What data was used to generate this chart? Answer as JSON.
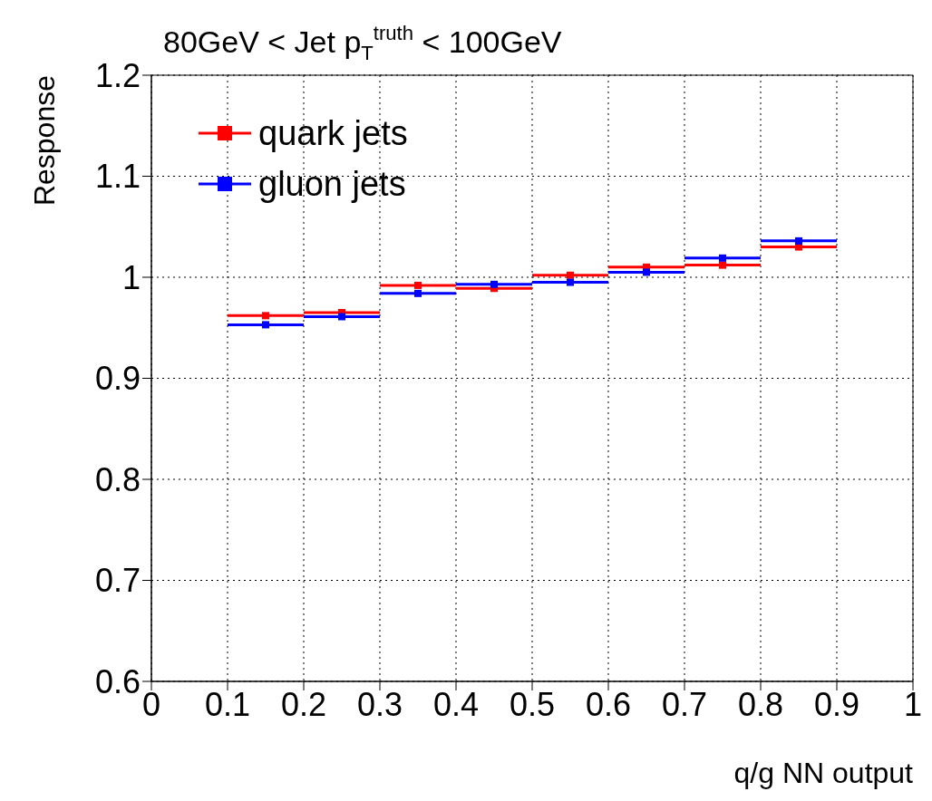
{
  "chart_data": {
    "type": "scatter",
    "title": "80GeV < Jet p$_{T}$$^{truth}$ < 100GeV",
    "xlabel": "q/g NN output",
    "ylabel": "Response",
    "x": [
      0.15,
      0.25,
      0.35,
      0.45,
      0.55,
      0.65,
      0.75,
      0.85
    ],
    "series": [
      {
        "name": "quark jets",
        "color": "#ff0000",
        "values": [
          0.962,
          0.965,
          0.992,
          0.989,
          1.002,
          1.01,
          1.012,
          1.03
        ],
        "xerrors": [
          0.05,
          0.05,
          0.05,
          0.05,
          0.05,
          0.05,
          0.05,
          0.05
        ]
      },
      {
        "name": "gluon jets",
        "color": "#0000ff",
        "values": [
          0.953,
          0.961,
          0.984,
          0.993,
          0.995,
          1.005,
          1.019,
          1.036
        ],
        "xerrors": [
          0.05,
          0.05,
          0.05,
          0.05,
          0.05,
          0.05,
          0.05,
          0.05
        ]
      }
    ],
    "xlim": [
      0,
      1
    ],
    "xticks": [
      0,
      0.1,
      0.2,
      0.3,
      0.4,
      0.5,
      0.6,
      0.7,
      0.8,
      0.9,
      1
    ],
    "ylim": [
      0.6,
      1.2
    ],
    "yticks": [
      0.6,
      0.7,
      0.8,
      0.9,
      1,
      1.1,
      1.2
    ],
    "grid": true,
    "legend": "top left",
    "marker": "square"
  }
}
